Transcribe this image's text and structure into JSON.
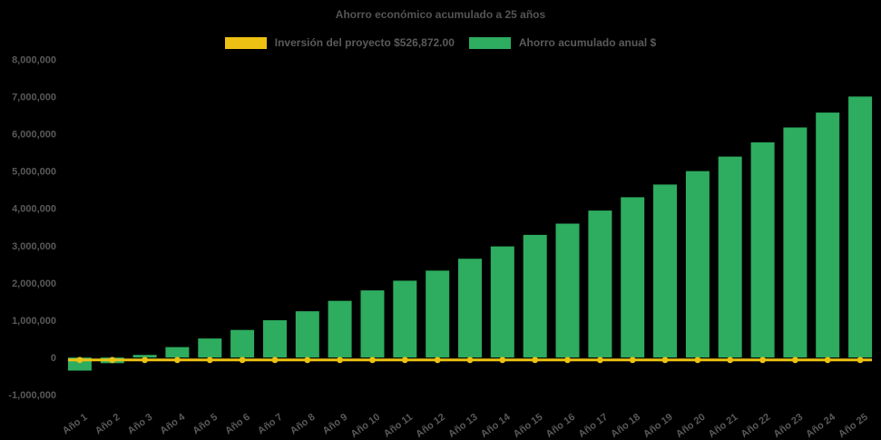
{
  "chart": {
    "title": "Ahorro económico acumulado a 25 años",
    "background_color": "#000000",
    "text_color": "#595959",
    "title_color": "#545454",
    "legend": [
      {
        "label": "Inversión del proyecto $526,872.00",
        "color": "#EDC113",
        "series_type": "line"
      },
      {
        "label": "Ahorro acumulado anual $",
        "color": "#2EAC5F",
        "series_type": "bar"
      }
    ]
  },
  "chart_data": {
    "type": "bar",
    "title": "Ahorro económico acumulado a 25 años",
    "categories": [
      "Año 1",
      "Año 2",
      "Año 3",
      "Año 4",
      "Año 5",
      "Año 6",
      "Año 7",
      "Año 8",
      "Año 9",
      "Año 10",
      "Año 11",
      "Año 12",
      "Año 13",
      "Año 14",
      "Año 15",
      "Año 16",
      "Año 17",
      "Año 18",
      "Año 19",
      "Año 20",
      "Año 21",
      "Año 22",
      "Año 23",
      "Año 24",
      "Año 25"
    ],
    "series": [
      {
        "name": "Ahorro acumulado anual $",
        "type": "bar",
        "color": "#2EAC5F",
        "values": [
          -350000,
          -150000,
          70000,
          280000,
          510000,
          740000,
          1000000,
          1240000,
          1520000,
          1800000,
          2060000,
          2330000,
          2650000,
          2980000,
          3290000,
          3590000,
          3940000,
          4300000,
          4640000,
          5000000,
          5390000,
          5770000,
          6170000,
          6570000,
          7000000
        ]
      },
      {
        "name": "Inversión del proyecto $526,872.00",
        "type": "line",
        "color": "#EDC113",
        "marker": "circle",
        "investment_amount_label": "$526,872.00",
        "plotted_value": -65000,
        "values": [
          -65000,
          -65000,
          -65000,
          -65000,
          -65000,
          -65000,
          -65000,
          -65000,
          -65000,
          -65000,
          -65000,
          -65000,
          -65000,
          -65000,
          -65000,
          -65000,
          -65000,
          -65000,
          -65000,
          -65000,
          -65000,
          -65000,
          -65000,
          -65000,
          -65000
        ]
      }
    ],
    "xlabel": "",
    "ylabel": "",
    "ylim": [
      -1190000,
      8250000
    ],
    "yticks": [
      -1000000,
      0,
      1000000,
      2000000,
      3000000,
      4000000,
      5000000,
      6000000,
      7000000,
      8000000
    ],
    "ytick_format": "thousands-comma",
    "xtick_rotation_deg": 36,
    "grid": false,
    "legend_position": "top-center"
  }
}
